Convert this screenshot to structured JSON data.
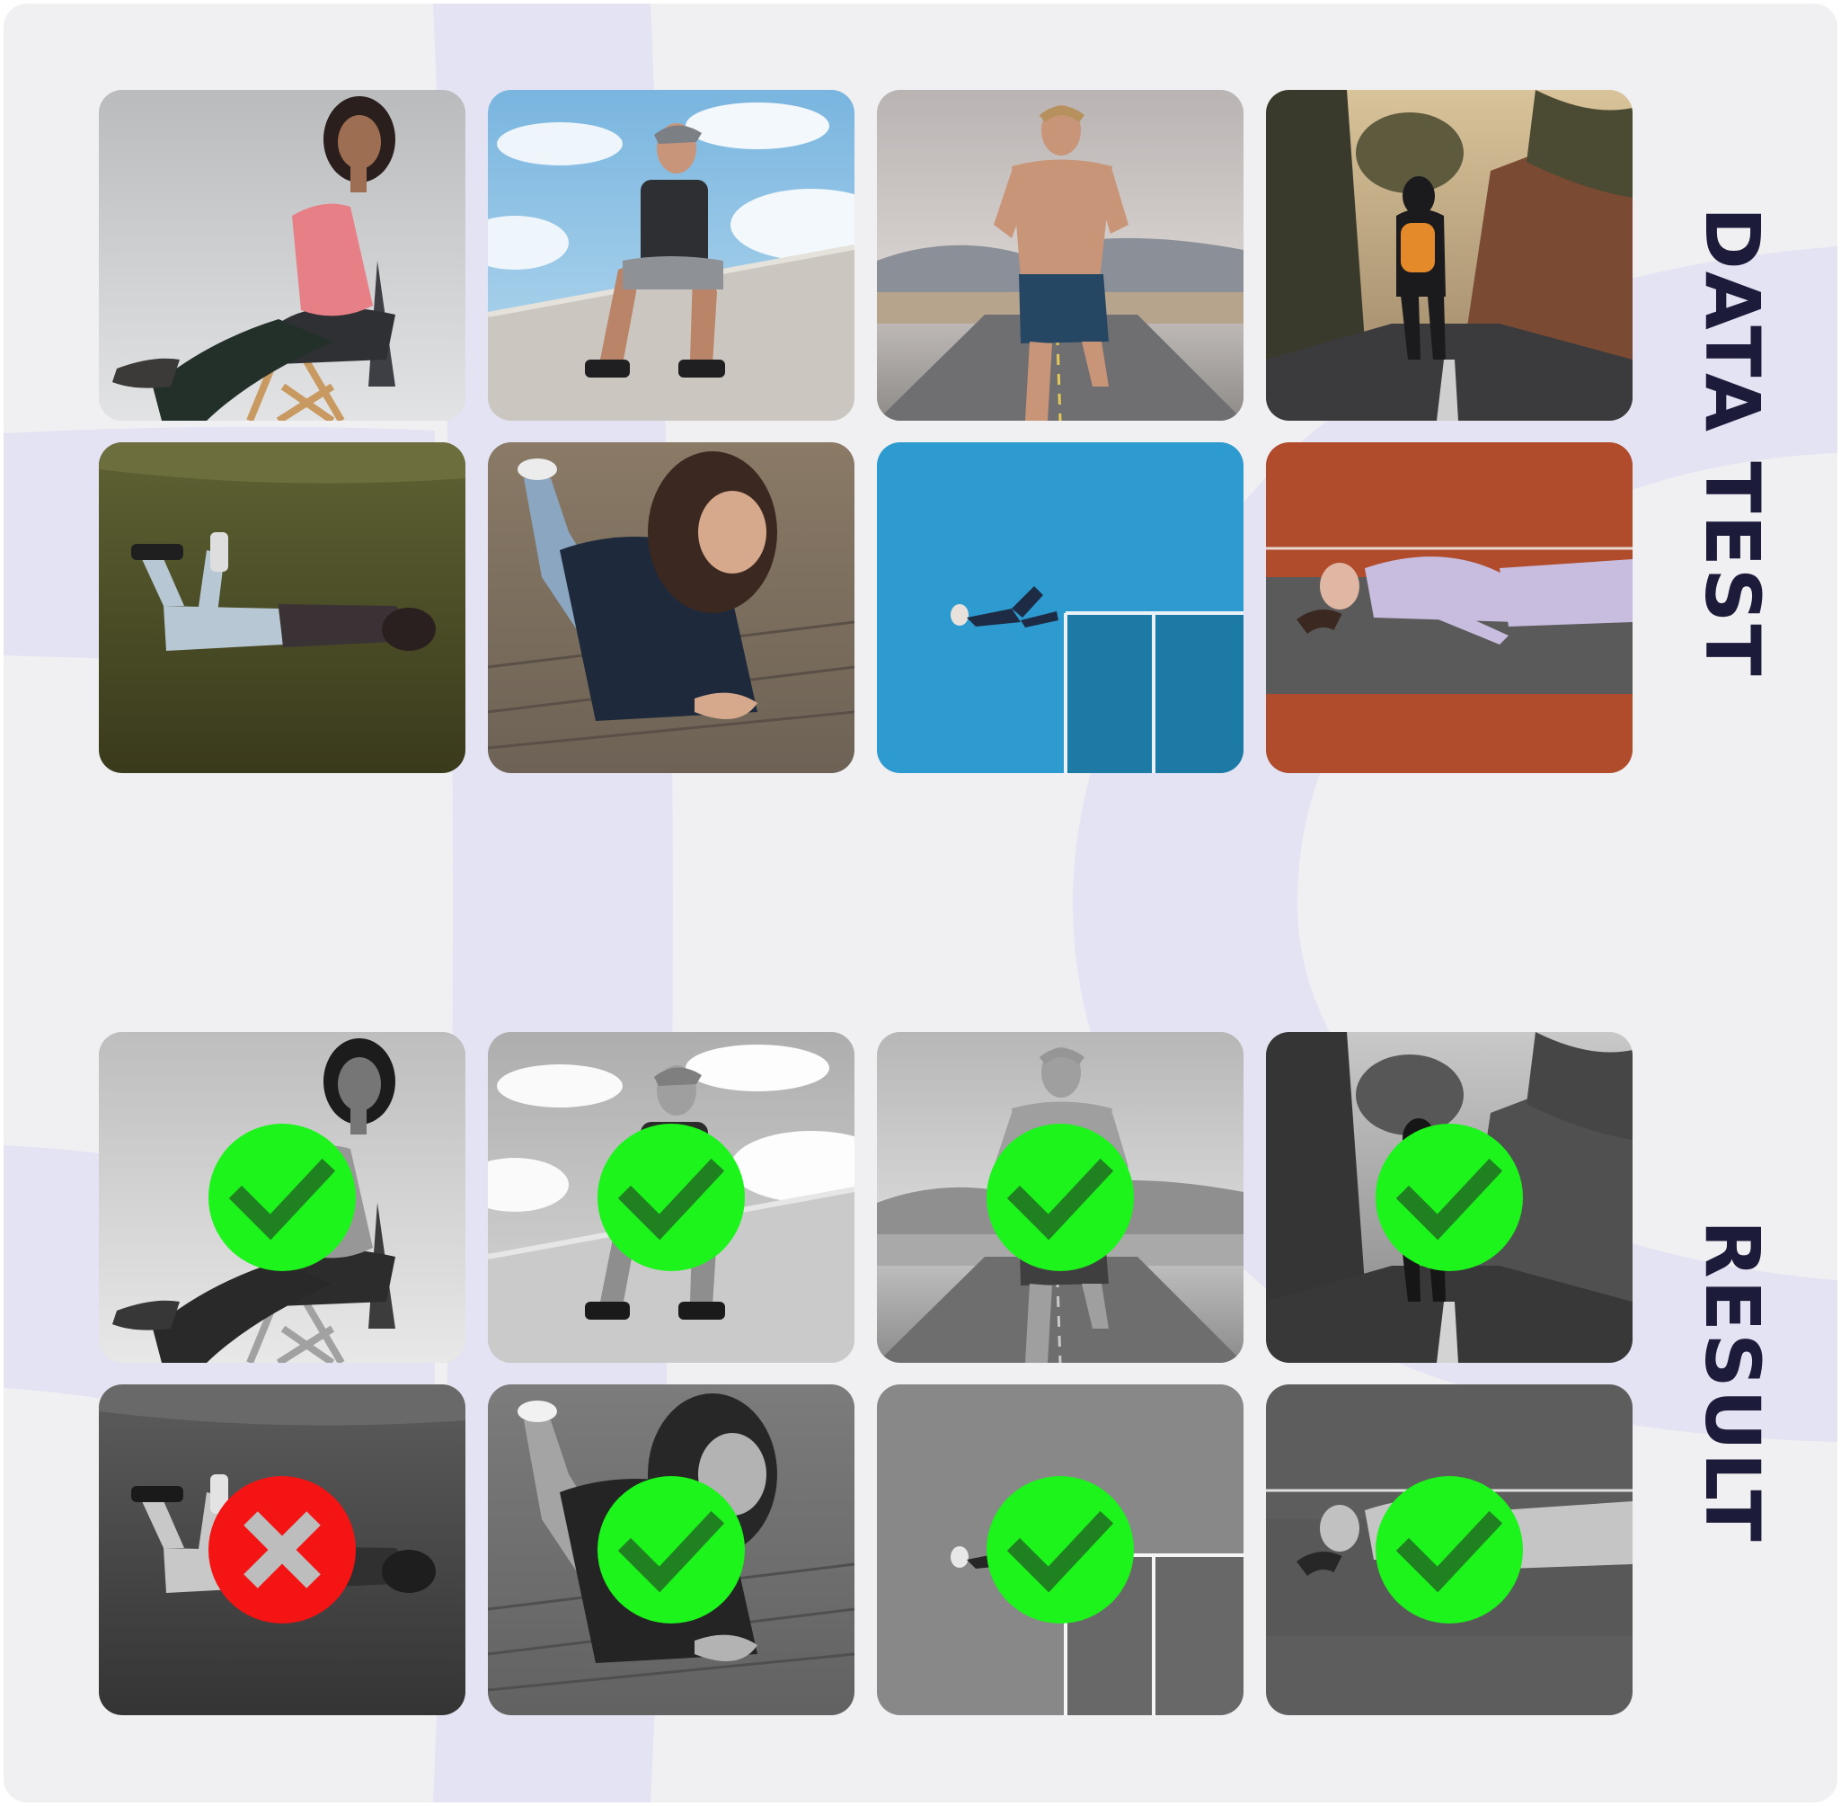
{
  "sections": {
    "data_test": {
      "label": "DATA TEST"
    },
    "result": {
      "label": "RESULT"
    }
  },
  "colors": {
    "background": "#f0f0f3",
    "decor": "#e4e3f3",
    "label": "#1d1b3a",
    "pass": "#1cf41c",
    "fail": "#f41414"
  },
  "test_images": [
    {
      "scene": "woman-seated-on-chair"
    },
    {
      "scene": "man-sitting-on-wall"
    },
    {
      "scene": "man-running-on-road"
    },
    {
      "scene": "hiker-walking-on-road"
    },
    {
      "scene": "person-lying-on-grass"
    },
    {
      "scene": "woman-lying-on-pavement"
    },
    {
      "scene": "person-on-blue-court"
    },
    {
      "scene": "woman-lying-on-track"
    }
  ],
  "results": [
    {
      "status": "pass",
      "icon": "check-icon"
    },
    {
      "status": "pass",
      "icon": "check-icon"
    },
    {
      "status": "pass",
      "icon": "check-icon"
    },
    {
      "status": "pass",
      "icon": "check-icon"
    },
    {
      "status": "fail",
      "icon": "cross-icon"
    },
    {
      "status": "pass",
      "icon": "check-icon"
    },
    {
      "status": "pass",
      "icon": "check-icon"
    },
    {
      "status": "pass",
      "icon": "check-icon"
    }
  ]
}
